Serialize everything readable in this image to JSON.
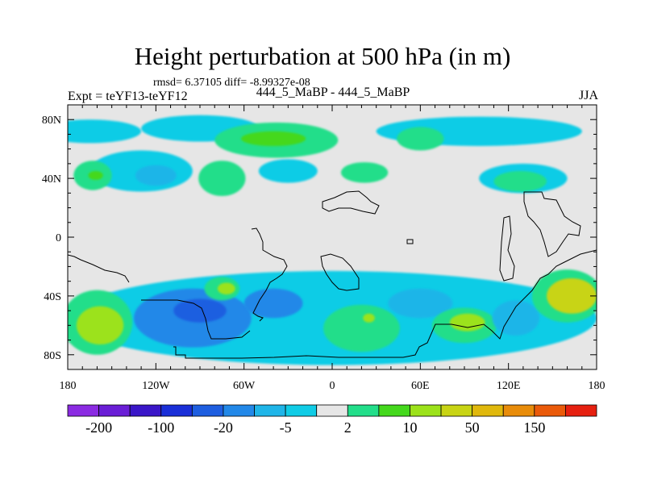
{
  "header": {
    "title": "Height perturbation at 500 hPa (in m)",
    "stats": "rmsd= 6.37105 diff= -8.99327e-08",
    "left_label": "Expt = teYF13-teYF12",
    "center_label": "444_5_MaBP - 444_5_MaBP",
    "right_label": "JJA"
  },
  "chart_data": {
    "type": "heatmap",
    "title": "Height perturbation at 500 hPa (in m)",
    "xlabel": "",
    "ylabel": "",
    "x_ticks": [
      {
        "value": -180,
        "label": "180"
      },
      {
        "value": -120,
        "label": "120W"
      },
      {
        "value": -60,
        "label": "60W"
      },
      {
        "value": 0,
        "label": "0"
      },
      {
        "value": 60,
        "label": "60E"
      },
      {
        "value": 120,
        "label": "120E"
      },
      {
        "value": 180,
        "label": "180"
      }
    ],
    "y_ticks": [
      {
        "value": 80,
        "label": "80N"
      },
      {
        "value": 40,
        "label": "40N"
      },
      {
        "value": 0,
        "label": "0"
      },
      {
        "value": -40,
        "label": "40S"
      },
      {
        "value": -80,
        "label": "80S"
      }
    ],
    "xlim": [
      -180,
      180
    ],
    "ylim": [
      -90,
      90
    ],
    "colorbar": {
      "colors": [
        "#8b2be2",
        "#6a1ed6",
        "#3a16c8",
        "#1a2fd8",
        "#1e5ee0",
        "#2288e8",
        "#1fb5e8",
        "#10cce6",
        "#e6e6e6",
        "#22de8a",
        "#44d81c",
        "#9ce21a",
        "#c8d414",
        "#e0b80c",
        "#e88c0a",
        "#ea5a0a",
        "#e62010"
      ],
      "labels": [
        {
          "index": 1,
          "label": "-200"
        },
        {
          "index": 3,
          "label": "-100"
        },
        {
          "index": 5,
          "label": "-20"
        },
        {
          "index": 7,
          "label": "-5"
        },
        {
          "index": 9,
          "label": "2"
        },
        {
          "index": 11,
          "label": "10"
        },
        {
          "index": 13,
          "label": "50"
        },
        {
          "index": 15,
          "label": "150"
        }
      ]
    },
    "regions": [
      {
        "name": "arctic-band",
        "level": 7,
        "lon": -165,
        "lat": 72,
        "rlon": 35,
        "rlat": 8
      },
      {
        "name": "arctic-band-2",
        "level": 7,
        "lon": -90,
        "lat": 74,
        "rlon": 40,
        "rlat": 9
      },
      {
        "name": "arctic-band-3",
        "level": 7,
        "lon": 100,
        "lat": 72,
        "rlon": 70,
        "rlat": 10
      },
      {
        "name": "atlantic-north-high",
        "level": 9,
        "lon": -38,
        "lat": 66,
        "rlon": 42,
        "rlat": 12
      },
      {
        "name": "atlantic-north-high-core",
        "level": 10,
        "lon": -40,
        "lat": 67,
        "rlon": 22,
        "rlat": 5
      },
      {
        "name": "siberia-high",
        "level": 9,
        "lon": 60,
        "lat": 67,
        "rlon": 16,
        "rlat": 8
      },
      {
        "name": "pacific-north-low",
        "level": 7,
        "lon": -130,
        "lat": 45,
        "rlon": 35,
        "rlat": 14
      },
      {
        "name": "pacific-north-low-core",
        "level": 6,
        "lon": -120,
        "lat": 42,
        "rlon": 14,
        "rlat": 7
      },
      {
        "name": "pacific-north-high",
        "level": 9,
        "lon": -163,
        "lat": 42,
        "rlon": 13,
        "rlat": 10
      },
      {
        "name": "pacific-north-high-core",
        "level": 10,
        "lon": -161,
        "lat": 42,
        "rlon": 5,
        "rlat": 3
      },
      {
        "name": "america-north-high",
        "level": 9,
        "lon": -75,
        "lat": 40,
        "rlon": 16,
        "rlat": 12
      },
      {
        "name": "atlantic-central-low",
        "level": 7,
        "lon": -30,
        "lat": 45,
        "rlon": 20,
        "rlat": 8
      },
      {
        "name": "europe-high",
        "level": 9,
        "lon": 22,
        "lat": 44,
        "rlon": 16,
        "rlat": 7
      },
      {
        "name": "asia-north-low",
        "level": 7,
        "lon": 130,
        "lat": 40,
        "rlon": 30,
        "rlat": 10
      },
      {
        "name": "asia-north-high",
        "level": 9,
        "lon": 128,
        "lat": 38,
        "rlon": 18,
        "rlat": 7
      },
      {
        "name": "south-band",
        "level": 7,
        "lon": 0,
        "lat": -55,
        "rlon": 180,
        "rlat": 32
      },
      {
        "name": "south-pacific-high",
        "level": 9,
        "lon": -160,
        "lat": -58,
        "rlon": 24,
        "rlat": 22
      },
      {
        "name": "south-pacific-high-core",
        "level": 11,
        "lon": -158,
        "lat": -60,
        "rlon": 16,
        "rlat": 13
      },
      {
        "name": "south-pacific-low",
        "level": 5,
        "lon": -95,
        "lat": -55,
        "rlon": 40,
        "rlat": 20
      },
      {
        "name": "south-pacific-low-core",
        "level": 4,
        "lon": -90,
        "lat": -50,
        "rlon": 18,
        "rlat": 8
      },
      {
        "name": "south-atlantic-low",
        "level": 5,
        "lon": -40,
        "lat": -45,
        "rlon": 20,
        "rlat": 10
      },
      {
        "name": "chile-high",
        "level": 9,
        "lon": -75,
        "lat": -35,
        "rlon": 12,
        "rlat": 8
      },
      {
        "name": "chile-high-core",
        "level": 11,
        "lon": -72,
        "lat": -35,
        "rlon": 6,
        "rlat": 4
      },
      {
        "name": "atlantic-south-high",
        "level": 9,
        "lon": 20,
        "lat": -62,
        "rlon": 26,
        "rlat": 16
      },
      {
        "name": "atlantic-south-high-core",
        "level": 11,
        "lon": 25,
        "lat": -55,
        "rlon": 4,
        "rlat": 3
      },
      {
        "name": "indian-south-low",
        "level": 6,
        "lon": 60,
        "lat": -45,
        "rlon": 22,
        "rlat": 10
      },
      {
        "name": "indian-south-high",
        "level": 9,
        "lon": 90,
        "lat": -60,
        "rlon": 22,
        "rlat": 12
      },
      {
        "name": "indian-south-high-core",
        "level": 11,
        "lon": 92,
        "lat": -58,
        "rlon": 12,
        "rlat": 6
      },
      {
        "name": "australia-south-low",
        "level": 6,
        "lon": 125,
        "lat": -55,
        "rlon": 16,
        "rlat": 12
      },
      {
        "name": "pacific-west-high",
        "level": 9,
        "lon": 160,
        "lat": -40,
        "rlon": 24,
        "rlat": 18
      },
      {
        "name": "pacific-west-high-core",
        "level": 12,
        "lon": 163,
        "lat": -40,
        "rlon": 17,
        "rlat": 12
      }
    ]
  }
}
